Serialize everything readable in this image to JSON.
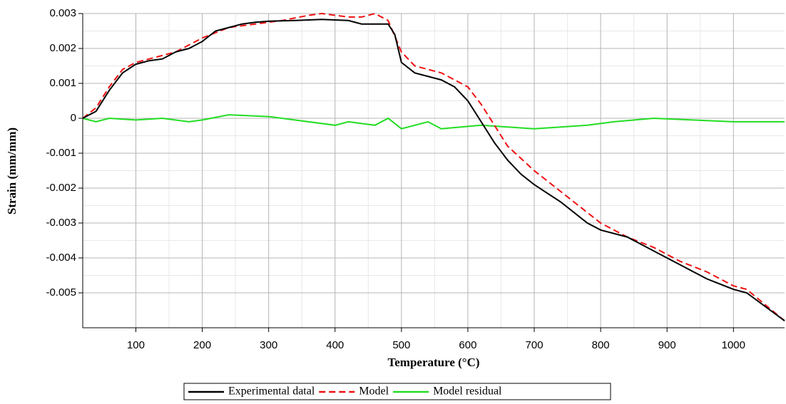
{
  "chart_data": {
    "type": "line",
    "xlabel": "Temperature (°C)",
    "ylabel": "Strain (mm/mm)",
    "xlim": [
      20,
      1077
    ],
    "ylim": [
      -0.006,
      0.003
    ],
    "xticks": [
      100,
      200,
      300,
      400,
      500,
      600,
      700,
      800,
      900,
      1000
    ],
    "yticks": [
      -0.005,
      -0.004,
      -0.003,
      -0.002,
      -0.001,
      0,
      0.001,
      0.002,
      0.003
    ],
    "grid": true,
    "legend": "bottom",
    "series": [
      {
        "name": "Experimental datal",
        "color": "#000000",
        "dash": false,
        "x": [
          20,
          40,
          60,
          80,
          100,
          120,
          140,
          160,
          180,
          200,
          220,
          240,
          260,
          280,
          300,
          340,
          380,
          420,
          440,
          460,
          480,
          490,
          500,
          520,
          560,
          580,
          600,
          620,
          640,
          660,
          680,
          700,
          740,
          780,
          800,
          840,
          880,
          920,
          960,
          1000,
          1020,
          1077
        ],
        "values": [
          0,
          0.0002,
          0.0008,
          0.0013,
          0.00155,
          0.00165,
          0.0017,
          0.0019,
          0.002,
          0.0022,
          0.0025,
          0.0026,
          0.0027,
          0.00275,
          0.00278,
          0.0028,
          0.00283,
          0.0028,
          0.0027,
          0.0027,
          0.0027,
          0.0024,
          0.0016,
          0.0013,
          0.0011,
          0.0009,
          0.0005,
          -0.0001,
          -0.0007,
          -0.0012,
          -0.0016,
          -0.0019,
          -0.0024,
          -0.003,
          -0.0032,
          -0.0034,
          -0.0038,
          -0.0042,
          -0.0046,
          -0.0049,
          -0.005,
          -0.0058
        ]
      },
      {
        "name": "Model",
        "color": "#ee1111",
        "dash": true,
        "x": [
          20,
          40,
          60,
          80,
          100,
          120,
          160,
          200,
          240,
          280,
          320,
          360,
          380,
          420,
          440,
          460,
          480,
          500,
          520,
          560,
          600,
          620,
          640,
          660,
          700,
          740,
          780,
          800,
          840,
          880,
          920,
          960,
          1000,
          1020,
          1077
        ],
        "values": [
          0,
          0.0003,
          0.0009,
          0.0014,
          0.0016,
          0.0017,
          0.0019,
          0.0023,
          0.0026,
          0.0027,
          0.0028,
          0.00295,
          0.003,
          0.0029,
          0.0029,
          0.003,
          0.0028,
          0.0019,
          0.0015,
          0.0013,
          0.0009,
          0.0004,
          -0.0002,
          -0.0008,
          -0.0015,
          -0.0021,
          -0.0027,
          -0.003,
          -0.0034,
          -0.0037,
          -0.0041,
          -0.0044,
          -0.0048,
          -0.0049,
          -0.0058
        ]
      },
      {
        "name": "Model residual",
        "color": "#22dd22",
        "dash": false,
        "x": [
          20,
          40,
          60,
          100,
          140,
          180,
          200,
          240,
          300,
          400,
          420,
          460,
          480,
          500,
          540,
          560,
          620,
          700,
          780,
          820,
          880,
          1000,
          1077
        ],
        "values": [
          0,
          -0.0001,
          0,
          -5e-05,
          0,
          -0.0001,
          -5e-05,
          0.0001,
          5e-05,
          -0.0002,
          -0.0001,
          -0.0002,
          0,
          -0.0003,
          -0.0001,
          -0.0003,
          -0.0002,
          -0.0003,
          -0.0002,
          -0.0001,
          0,
          -0.0001,
          -0.0001
        ]
      }
    ]
  }
}
